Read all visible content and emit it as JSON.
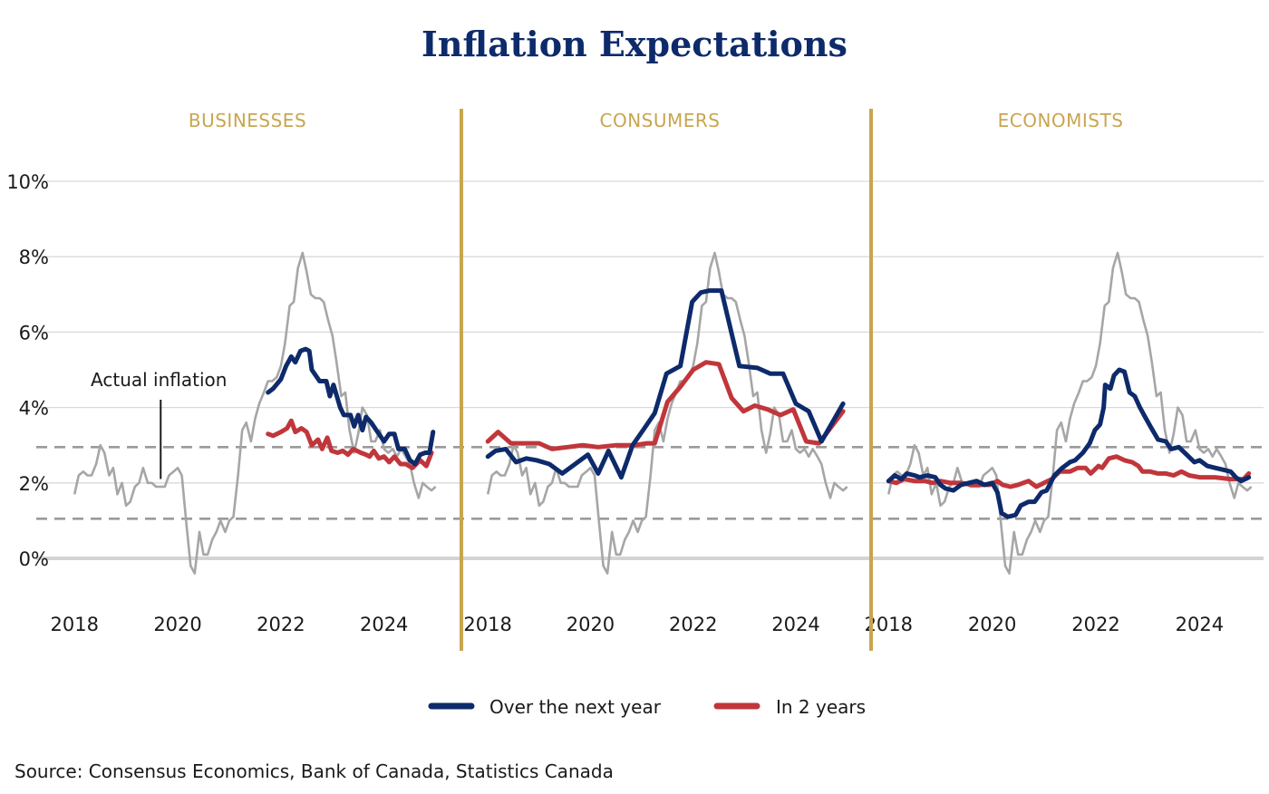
{
  "chart_data": {
    "type": "line",
    "title": "Inflation Expectations",
    "source": "Source: Consensus Economics, Bank of Canada, Statistics Canada",
    "ylim": [
      -1.2,
      10
    ],
    "yticks": [
      {
        "value": 0,
        "label": "0%"
      },
      {
        "value": 2,
        "label": "2%"
      },
      {
        "value": 4,
        "label": "4%"
      },
      {
        "value": 6,
        "label": "6%"
      },
      {
        "value": 8,
        "label": "8%"
      },
      {
        "value": 10,
        "label": "10%"
      }
    ],
    "xlim": [
      2017.75,
      2025.2
    ],
    "xticks": [
      {
        "value": 2018,
        "label": "2018"
      },
      {
        "value": 2020,
        "label": "2020"
      },
      {
        "value": 2022,
        "label": "2022"
      },
      {
        "value": 2024,
        "label": "2024"
      }
    ],
    "reference_lines": [
      1.05,
      2.95
    ],
    "grid": true,
    "legend_position": "bottom-center",
    "colors": {
      "next_year": "#0d2a6b",
      "in_2_years": "#c0363b",
      "actual": "#a6a6a6",
      "divider": "#c9a54f",
      "grid": "#d9d9d9",
      "baseline": "#d4d4d4",
      "reference": "#9a9a9a"
    },
    "legend": [
      {
        "key": "next_year",
        "label": "Over the next year"
      },
      {
        "key": "in_2_years",
        "label": "In 2 years"
      }
    ],
    "annotation": {
      "label": "Actual inflation",
      "x": 2019.67,
      "y": 2.2
    },
    "actual_inflation": [
      [
        2018.0,
        1.7
      ],
      [
        2018.08,
        2.2
      ],
      [
        2018.17,
        2.3
      ],
      [
        2018.25,
        2.2
      ],
      [
        2018.33,
        2.2
      ],
      [
        2018.42,
        2.5
      ],
      [
        2018.5,
        3.0
      ],
      [
        2018.58,
        2.8
      ],
      [
        2018.67,
        2.2
      ],
      [
        2018.75,
        2.4
      ],
      [
        2018.83,
        1.7
      ],
      [
        2018.92,
        2.0
      ],
      [
        2019.0,
        1.4
      ],
      [
        2019.08,
        1.5
      ],
      [
        2019.17,
        1.9
      ],
      [
        2019.25,
        2.0
      ],
      [
        2019.33,
        2.4
      ],
      [
        2019.42,
        2.0
      ],
      [
        2019.5,
        2.0
      ],
      [
        2019.58,
        1.9
      ],
      [
        2019.67,
        1.9
      ],
      [
        2019.75,
        1.9
      ],
      [
        2019.83,
        2.2
      ],
      [
        2019.92,
        2.3
      ],
      [
        2020.0,
        2.4
      ],
      [
        2020.08,
        2.2
      ],
      [
        2020.17,
        0.9
      ],
      [
        2020.25,
        -0.2
      ],
      [
        2020.33,
        -0.4
      ],
      [
        2020.42,
        0.7
      ],
      [
        2020.5,
        0.1
      ],
      [
        2020.58,
        0.1
      ],
      [
        2020.67,
        0.5
      ],
      [
        2020.75,
        0.7
      ],
      [
        2020.83,
        1.0
      ],
      [
        2020.92,
        0.7
      ],
      [
        2021.0,
        1.0
      ],
      [
        2021.08,
        1.1
      ],
      [
        2021.17,
        2.2
      ],
      [
        2021.25,
        3.4
      ],
      [
        2021.33,
        3.6
      ],
      [
        2021.42,
        3.1
      ],
      [
        2021.5,
        3.7
      ],
      [
        2021.58,
        4.1
      ],
      [
        2021.67,
        4.4
      ],
      [
        2021.75,
        4.7
      ],
      [
        2021.83,
        4.7
      ],
      [
        2021.92,
        4.8
      ],
      [
        2022.0,
        5.1
      ],
      [
        2022.08,
        5.7
      ],
      [
        2022.17,
        6.7
      ],
      [
        2022.25,
        6.8
      ],
      [
        2022.33,
        7.7
      ],
      [
        2022.42,
        8.1
      ],
      [
        2022.5,
        7.6
      ],
      [
        2022.58,
        7.0
      ],
      [
        2022.67,
        6.9
      ],
      [
        2022.75,
        6.9
      ],
      [
        2022.83,
        6.8
      ],
      [
        2022.92,
        6.3
      ],
      [
        2023.0,
        5.9
      ],
      [
        2023.08,
        5.2
      ],
      [
        2023.17,
        4.3
      ],
      [
        2023.25,
        4.4
      ],
      [
        2023.33,
        3.4
      ],
      [
        2023.42,
        2.8
      ],
      [
        2023.5,
        3.3
      ],
      [
        2023.58,
        4.0
      ],
      [
        2023.67,
        3.8
      ],
      [
        2023.75,
        3.1
      ],
      [
        2023.83,
        3.1
      ],
      [
        2023.92,
        3.4
      ],
      [
        2024.0,
        2.9
      ],
      [
        2024.08,
        2.8
      ],
      [
        2024.17,
        2.9
      ],
      [
        2024.25,
        2.7
      ],
      [
        2024.33,
        2.9
      ],
      [
        2024.42,
        2.7
      ],
      [
        2024.5,
        2.5
      ],
      [
        2024.58,
        2.0
      ],
      [
        2024.67,
        1.6
      ],
      [
        2024.75,
        2.0
      ],
      [
        2024.83,
        1.9
      ],
      [
        2024.92,
        1.8
      ],
      [
        2025.0,
        1.9
      ]
    ],
    "panels": [
      {
        "name": "BUSINESSES",
        "next_year": [
          [
            2021.75,
            4.4
          ],
          [
            2021.85,
            4.5
          ],
          [
            2022.0,
            4.75
          ],
          [
            2022.1,
            5.1
          ],
          [
            2022.2,
            5.35
          ],
          [
            2022.28,
            5.2
          ],
          [
            2022.38,
            5.5
          ],
          [
            2022.48,
            5.55
          ],
          [
            2022.55,
            5.5
          ],
          [
            2022.6,
            5.0
          ],
          [
            2022.75,
            4.7
          ],
          [
            2022.88,
            4.7
          ],
          [
            2022.95,
            4.3
          ],
          [
            2023.02,
            4.6
          ],
          [
            2023.15,
            4.0
          ],
          [
            2023.22,
            3.8
          ],
          [
            2023.35,
            3.8
          ],
          [
            2023.42,
            3.5
          ],
          [
            2023.5,
            3.8
          ],
          [
            2023.58,
            3.4
          ],
          [
            2023.65,
            3.75
          ],
          [
            2023.75,
            3.6
          ],
          [
            2023.85,
            3.4
          ],
          [
            2024.0,
            3.1
          ],
          [
            2024.1,
            3.3
          ],
          [
            2024.2,
            3.3
          ],
          [
            2024.28,
            2.9
          ],
          [
            2024.4,
            2.9
          ],
          [
            2024.5,
            2.6
          ],
          [
            2024.6,
            2.5
          ],
          [
            2024.7,
            2.75
          ],
          [
            2024.8,
            2.8
          ],
          [
            2024.88,
            2.8
          ],
          [
            2024.95,
            3.35
          ]
        ],
        "in_2_years": [
          [
            2021.75,
            3.3
          ],
          [
            2021.85,
            3.25
          ],
          [
            2022.0,
            3.35
          ],
          [
            2022.12,
            3.45
          ],
          [
            2022.2,
            3.65
          ],
          [
            2022.28,
            3.35
          ],
          [
            2022.4,
            3.45
          ],
          [
            2022.5,
            3.35
          ],
          [
            2022.6,
            3.0
          ],
          [
            2022.72,
            3.15
          ],
          [
            2022.8,
            2.9
          ],
          [
            2022.9,
            3.2
          ],
          [
            2022.98,
            2.85
          ],
          [
            2023.1,
            2.8
          ],
          [
            2023.2,
            2.85
          ],
          [
            2023.3,
            2.75
          ],
          [
            2023.4,
            2.9
          ],
          [
            2023.55,
            2.8
          ],
          [
            2023.65,
            2.75
          ],
          [
            2023.72,
            2.7
          ],
          [
            2023.8,
            2.85
          ],
          [
            2023.9,
            2.65
          ],
          [
            2024.0,
            2.7
          ],
          [
            2024.1,
            2.55
          ],
          [
            2024.2,
            2.7
          ],
          [
            2024.32,
            2.5
          ],
          [
            2024.42,
            2.5
          ],
          [
            2024.55,
            2.4
          ],
          [
            2024.7,
            2.6
          ],
          [
            2024.82,
            2.45
          ],
          [
            2024.92,
            2.8
          ]
        ]
      },
      {
        "name": "CONSUMERS",
        "next_year": [
          [
            2018.0,
            2.7
          ],
          [
            2018.15,
            2.85
          ],
          [
            2018.35,
            2.9
          ],
          [
            2018.55,
            2.55
          ],
          [
            2018.75,
            2.65
          ],
          [
            2018.95,
            2.6
          ],
          [
            2019.2,
            2.5
          ],
          [
            2019.45,
            2.25
          ],
          [
            2019.7,
            2.5
          ],
          [
            2019.95,
            2.75
          ],
          [
            2020.15,
            2.25
          ],
          [
            2020.35,
            2.85
          ],
          [
            2020.6,
            2.15
          ],
          [
            2020.82,
            3.0
          ],
          [
            2021.05,
            3.45
          ],
          [
            2021.25,
            3.85
          ],
          [
            2021.48,
            4.9
          ],
          [
            2021.75,
            5.1
          ],
          [
            2021.98,
            6.8
          ],
          [
            2022.15,
            7.05
          ],
          [
            2022.32,
            7.1
          ],
          [
            2022.55,
            7.1
          ],
          [
            2022.9,
            5.1
          ],
          [
            2023.25,
            5.05
          ],
          [
            2023.5,
            4.9
          ],
          [
            2023.75,
            4.9
          ],
          [
            2024.0,
            4.1
          ],
          [
            2024.25,
            3.9
          ],
          [
            2024.5,
            3.1
          ],
          [
            2024.92,
            4.1
          ]
        ],
        "in_2_years": [
          [
            2018.0,
            3.1
          ],
          [
            2018.2,
            3.35
          ],
          [
            2018.45,
            3.05
          ],
          [
            2018.75,
            3.05
          ],
          [
            2019.0,
            3.05
          ],
          [
            2019.25,
            2.9
          ],
          [
            2019.55,
            2.95
          ],
          [
            2019.85,
            3.0
          ],
          [
            2020.15,
            2.95
          ],
          [
            2020.5,
            3.0
          ],
          [
            2020.85,
            3.0
          ],
          [
            2021.1,
            3.05
          ],
          [
            2021.25,
            3.05
          ],
          [
            2021.5,
            4.15
          ],
          [
            2021.75,
            4.55
          ],
          [
            2022.0,
            5.0
          ],
          [
            2022.25,
            5.2
          ],
          [
            2022.5,
            5.15
          ],
          [
            2022.75,
            4.25
          ],
          [
            2022.98,
            3.9
          ],
          [
            2023.2,
            4.05
          ],
          [
            2023.45,
            3.95
          ],
          [
            2023.7,
            3.8
          ],
          [
            2023.95,
            3.95
          ],
          [
            2024.2,
            3.1
          ],
          [
            2024.45,
            3.05
          ],
          [
            2024.92,
            3.9
          ]
        ]
      },
      {
        "name": "ECONOMISTS",
        "next_year": [
          [
            2018.0,
            2.05
          ],
          [
            2018.12,
            2.2
          ],
          [
            2018.25,
            2.1
          ],
          [
            2018.35,
            2.25
          ],
          [
            2018.5,
            2.2
          ],
          [
            2018.6,
            2.15
          ],
          [
            2018.75,
            2.2
          ],
          [
            2018.9,
            2.15
          ],
          [
            2019.0,
            1.95
          ],
          [
            2019.1,
            1.85
          ],
          [
            2019.25,
            1.8
          ],
          [
            2019.4,
            1.95
          ],
          [
            2019.55,
            2.0
          ],
          [
            2019.7,
            2.05
          ],
          [
            2019.85,
            1.95
          ],
          [
            2020.0,
            2.0
          ],
          [
            2020.1,
            1.75
          ],
          [
            2020.18,
            1.2
          ],
          [
            2020.3,
            1.1
          ],
          [
            2020.45,
            1.15
          ],
          [
            2020.55,
            1.4
          ],
          [
            2020.7,
            1.5
          ],
          [
            2020.82,
            1.5
          ],
          [
            2020.95,
            1.75
          ],
          [
            2021.05,
            1.8
          ],
          [
            2021.2,
            2.2
          ],
          [
            2021.35,
            2.4
          ],
          [
            2021.5,
            2.55
          ],
          [
            2021.6,
            2.6
          ],
          [
            2021.75,
            2.8
          ],
          [
            2021.88,
            3.05
          ],
          [
            2021.98,
            3.4
          ],
          [
            2022.08,
            3.55
          ],
          [
            2022.15,
            4.0
          ],
          [
            2022.18,
            4.6
          ],
          [
            2022.28,
            4.5
          ],
          [
            2022.35,
            4.85
          ],
          [
            2022.45,
            5.0
          ],
          [
            2022.55,
            4.95
          ],
          [
            2022.65,
            4.4
          ],
          [
            2022.75,
            4.3
          ],
          [
            2022.85,
            4.0
          ],
          [
            2022.95,
            3.75
          ],
          [
            2023.05,
            3.5
          ],
          [
            2023.2,
            3.15
          ],
          [
            2023.35,
            3.1
          ],
          [
            2023.45,
            2.9
          ],
          [
            2023.6,
            2.95
          ],
          [
            2023.75,
            2.75
          ],
          [
            2023.9,
            2.55
          ],
          [
            2024.0,
            2.6
          ],
          [
            2024.15,
            2.45
          ],
          [
            2024.3,
            2.4
          ],
          [
            2024.45,
            2.35
          ],
          [
            2024.6,
            2.3
          ],
          [
            2024.7,
            2.15
          ],
          [
            2024.8,
            2.05
          ],
          [
            2024.88,
            2.1
          ],
          [
            2024.95,
            2.15
          ]
        ],
        "in_2_years": [
          [
            2018.0,
            2.05
          ],
          [
            2018.15,
            2.0
          ],
          [
            2018.3,
            2.1
          ],
          [
            2018.5,
            2.05
          ],
          [
            2018.7,
            2.05
          ],
          [
            2018.85,
            2.0
          ],
          [
            2019.0,
            2.05
          ],
          [
            2019.2,
            2.0
          ],
          [
            2019.4,
            2.0
          ],
          [
            2019.6,
            1.95
          ],
          [
            2019.8,
            1.95
          ],
          [
            2019.95,
            1.95
          ],
          [
            2020.1,
            2.05
          ],
          [
            2020.2,
            1.95
          ],
          [
            2020.35,
            1.9
          ],
          [
            2020.5,
            1.95
          ],
          [
            2020.7,
            2.05
          ],
          [
            2020.85,
            1.9
          ],
          [
            2021.0,
            2.0
          ],
          [
            2021.15,
            2.1
          ],
          [
            2021.3,
            2.3
          ],
          [
            2021.5,
            2.3
          ],
          [
            2021.65,
            2.4
          ],
          [
            2021.8,
            2.4
          ],
          [
            2021.9,
            2.25
          ],
          [
            2022.05,
            2.45
          ],
          [
            2022.12,
            2.4
          ],
          [
            2022.25,
            2.65
          ],
          [
            2022.4,
            2.7
          ],
          [
            2022.55,
            2.6
          ],
          [
            2022.7,
            2.55
          ],
          [
            2022.82,
            2.45
          ],
          [
            2022.9,
            2.3
          ],
          [
            2023.05,
            2.3
          ],
          [
            2023.2,
            2.25
          ],
          [
            2023.35,
            2.25
          ],
          [
            2023.5,
            2.2
          ],
          [
            2023.65,
            2.3
          ],
          [
            2023.8,
            2.2
          ],
          [
            2024.0,
            2.15
          ],
          [
            2024.3,
            2.15
          ],
          [
            2024.6,
            2.1
          ],
          [
            2024.85,
            2.1
          ],
          [
            2024.95,
            2.25
          ]
        ]
      }
    ]
  }
}
